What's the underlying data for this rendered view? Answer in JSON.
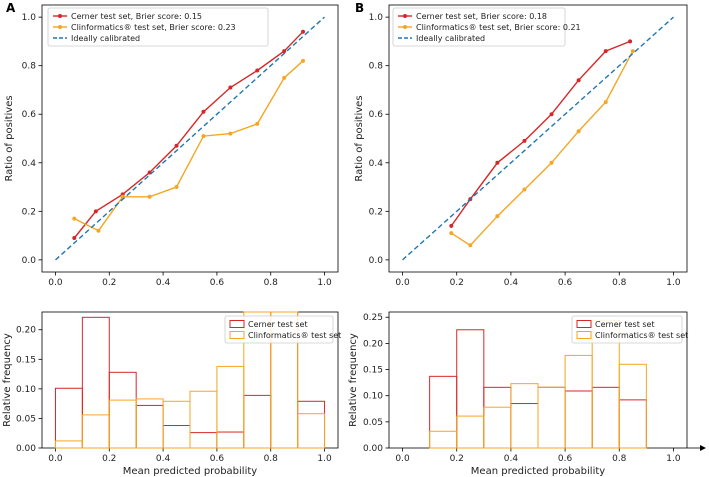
{
  "figure": {
    "panel_letters": [
      "A",
      "B"
    ]
  },
  "colors": {
    "cerner": "#d62728",
    "clinformatics": "#f5a623",
    "ideal": "#1f77b4",
    "axis": "#000000"
  },
  "chart_data": [
    {
      "id": "A-calibration",
      "panel": "A",
      "type": "line",
      "title": "",
      "xlabel": "",
      "ylabel": "Ratio of positives",
      "xlim": [
        -0.05,
        1.05
      ],
      "ylim": [
        -0.05,
        1.05
      ],
      "xticks": [
        "0.0",
        "0.2",
        "0.4",
        "0.6",
        "0.8",
        "1.0"
      ],
      "yticks": [
        "0.0",
        "0.2",
        "0.4",
        "0.6",
        "0.8",
        "1.0"
      ],
      "legend_position": "top-left",
      "series": [
        {
          "name": "Cerner test set, Brier score: 0.15",
          "color_key": "cerner",
          "marker": true,
          "x": [
            0.07,
            0.15,
            0.25,
            0.35,
            0.45,
            0.55,
            0.65,
            0.75,
            0.85,
            0.92
          ],
          "y": [
            0.09,
            0.2,
            0.27,
            0.36,
            0.47,
            0.61,
            0.71,
            0.78,
            0.86,
            0.94
          ]
        },
        {
          "name": "Clinformatics® test set, Brier score: 0.23",
          "color_key": "clinformatics",
          "marker": true,
          "x": [
            0.07,
            0.16,
            0.25,
            0.35,
            0.45,
            0.55,
            0.65,
            0.75,
            0.85,
            0.92
          ],
          "y": [
            0.17,
            0.12,
            0.26,
            0.26,
            0.3,
            0.51,
            0.52,
            0.56,
            0.75,
            0.82
          ]
        },
        {
          "name": "Ideally calibrated",
          "color_key": "ideal",
          "dashed": true,
          "x": [
            0.0,
            1.0
          ],
          "y": [
            0.0,
            1.0
          ]
        }
      ]
    },
    {
      "id": "B-calibration",
      "panel": "B",
      "type": "line",
      "title": "",
      "xlabel": "",
      "ylabel": "Ratio of positives",
      "xlim": [
        -0.05,
        1.05
      ],
      "ylim": [
        -0.05,
        1.05
      ],
      "xticks": [
        "0.0",
        "0.2",
        "0.4",
        "0.6",
        "0.8",
        "1.0"
      ],
      "yticks": [
        "0.0",
        "0.2",
        "0.4",
        "0.6",
        "0.8",
        "1.0"
      ],
      "legend_position": "top-left",
      "series": [
        {
          "name": "Cerner test set, Brier score: 0.18",
          "color_key": "cerner",
          "marker": true,
          "x": [
            0.18,
            0.25,
            0.35,
            0.45,
            0.55,
            0.65,
            0.75,
            0.84
          ],
          "y": [
            0.14,
            0.25,
            0.4,
            0.49,
            0.6,
            0.74,
            0.86,
            0.9
          ]
        },
        {
          "name": "Clinformatics® test set, Brier score: 0.21",
          "color_key": "clinformatics",
          "marker": true,
          "x": [
            0.18,
            0.25,
            0.35,
            0.45,
            0.55,
            0.65,
            0.75,
            0.85
          ],
          "y": [
            0.11,
            0.06,
            0.18,
            0.29,
            0.4,
            0.53,
            0.65,
            0.86
          ]
        },
        {
          "name": "Ideally calibrated",
          "color_key": "ideal",
          "dashed": true,
          "x": [
            0.0,
            1.0
          ],
          "y": [
            0.0,
            1.0
          ]
        }
      ]
    },
    {
      "id": "A-histogram",
      "panel": "A",
      "type": "bar",
      "title": "",
      "xlabel": "Mean predicted probability",
      "ylabel": "Relative frequency",
      "xlim": [
        -0.05,
        1.05
      ],
      "ylim": [
        0,
        0.23
      ],
      "xticks": [
        "0.0",
        "0.2",
        "0.4",
        "0.6",
        "0.8",
        "1.0"
      ],
      "yticks": [
        "0.00",
        "0.05",
        "0.10",
        "0.15",
        "0.20"
      ],
      "legend_position": "top-right",
      "bin_edges": [
        0.0,
        0.1,
        0.2,
        0.3,
        0.4,
        0.5,
        0.6,
        0.7,
        0.8,
        0.9,
        1.0
      ],
      "series": [
        {
          "name": "Cerner test set",
          "color_key": "cerner",
          "values": [
            0.101,
            0.221,
            0.128,
            0.072,
            0.038,
            0.026,
            0.027,
            0.089,
            0.244,
            0.079
          ]
        },
        {
          "name": "Clinformatics® test set",
          "color_key": "clinformatics",
          "values": [
            0.012,
            0.056,
            0.081,
            0.083,
            0.079,
            0.096,
            0.138,
            0.244,
            0.244,
            0.058
          ]
        }
      ]
    },
    {
      "id": "B-histogram",
      "panel": "B",
      "type": "bar",
      "title": "",
      "xlabel": "Mean predicted probability",
      "ylabel": "Relative frequency",
      "xlim": [
        -0.05,
        1.05
      ],
      "ylim": [
        0,
        0.26
      ],
      "xticks": [
        "0.0",
        "0.2",
        "0.4",
        "0.6",
        "0.8",
        "1.0"
      ],
      "yticks": [
        "0.00",
        "0.05",
        "0.10",
        "0.15",
        "0.20",
        "0.25"
      ],
      "legend_position": "top-right",
      "bin_edges": [
        0.0,
        0.1,
        0.2,
        0.3,
        0.4,
        0.5,
        0.6,
        0.7,
        0.8,
        0.9,
        1.0
      ],
      "series": [
        {
          "name": "Cerner test set",
          "color_key": "cerner",
          "values": [
            0,
            0.137,
            0.226,
            0.116,
            0.085,
            0.116,
            0.109,
            0.116,
            0.092,
            0
          ]
        },
        {
          "name": "Clinformatics® test set",
          "color_key": "clinformatics",
          "values": [
            0,
            0.032,
            0.061,
            0.078,
            0.123,
            0.116,
            0.177,
            0.244,
            0.16,
            0
          ]
        }
      ]
    }
  ]
}
